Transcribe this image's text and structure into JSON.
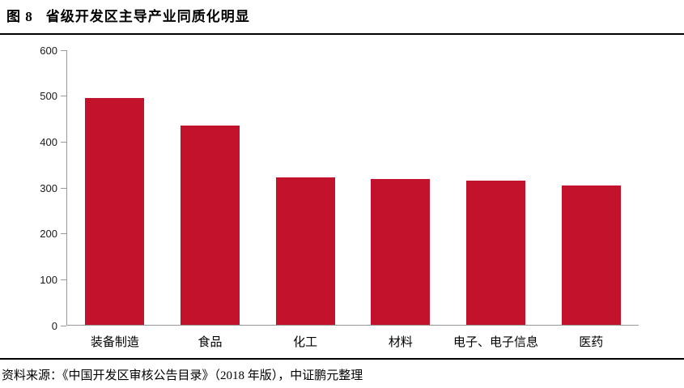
{
  "title": {
    "figure_label": "图 8",
    "text": "省级开发区主导产业同质化明显"
  },
  "source": "资料来源：《中国开发区审核公告目录》（2018 年版），中证鹏元整理",
  "colors": {
    "bar": "#c3122b",
    "axis": "#999999",
    "rule": "#000000"
  },
  "chart_data": {
    "type": "bar",
    "categories": [
      "装备制造",
      "食品",
      "化工",
      "材料",
      "电子、电子信息",
      "医药"
    ],
    "values": [
      494,
      435,
      322,
      317,
      314,
      304
    ],
    "title": "省级开发区主导产业同质化明显",
    "xlabel": "",
    "ylabel": "",
    "ylim": [
      0,
      600
    ],
    "yticks": [
      0,
      100,
      200,
      300,
      400,
      500,
      600
    ],
    "grid": false,
    "legend": false,
    "bar_color": "#c3122b"
  }
}
